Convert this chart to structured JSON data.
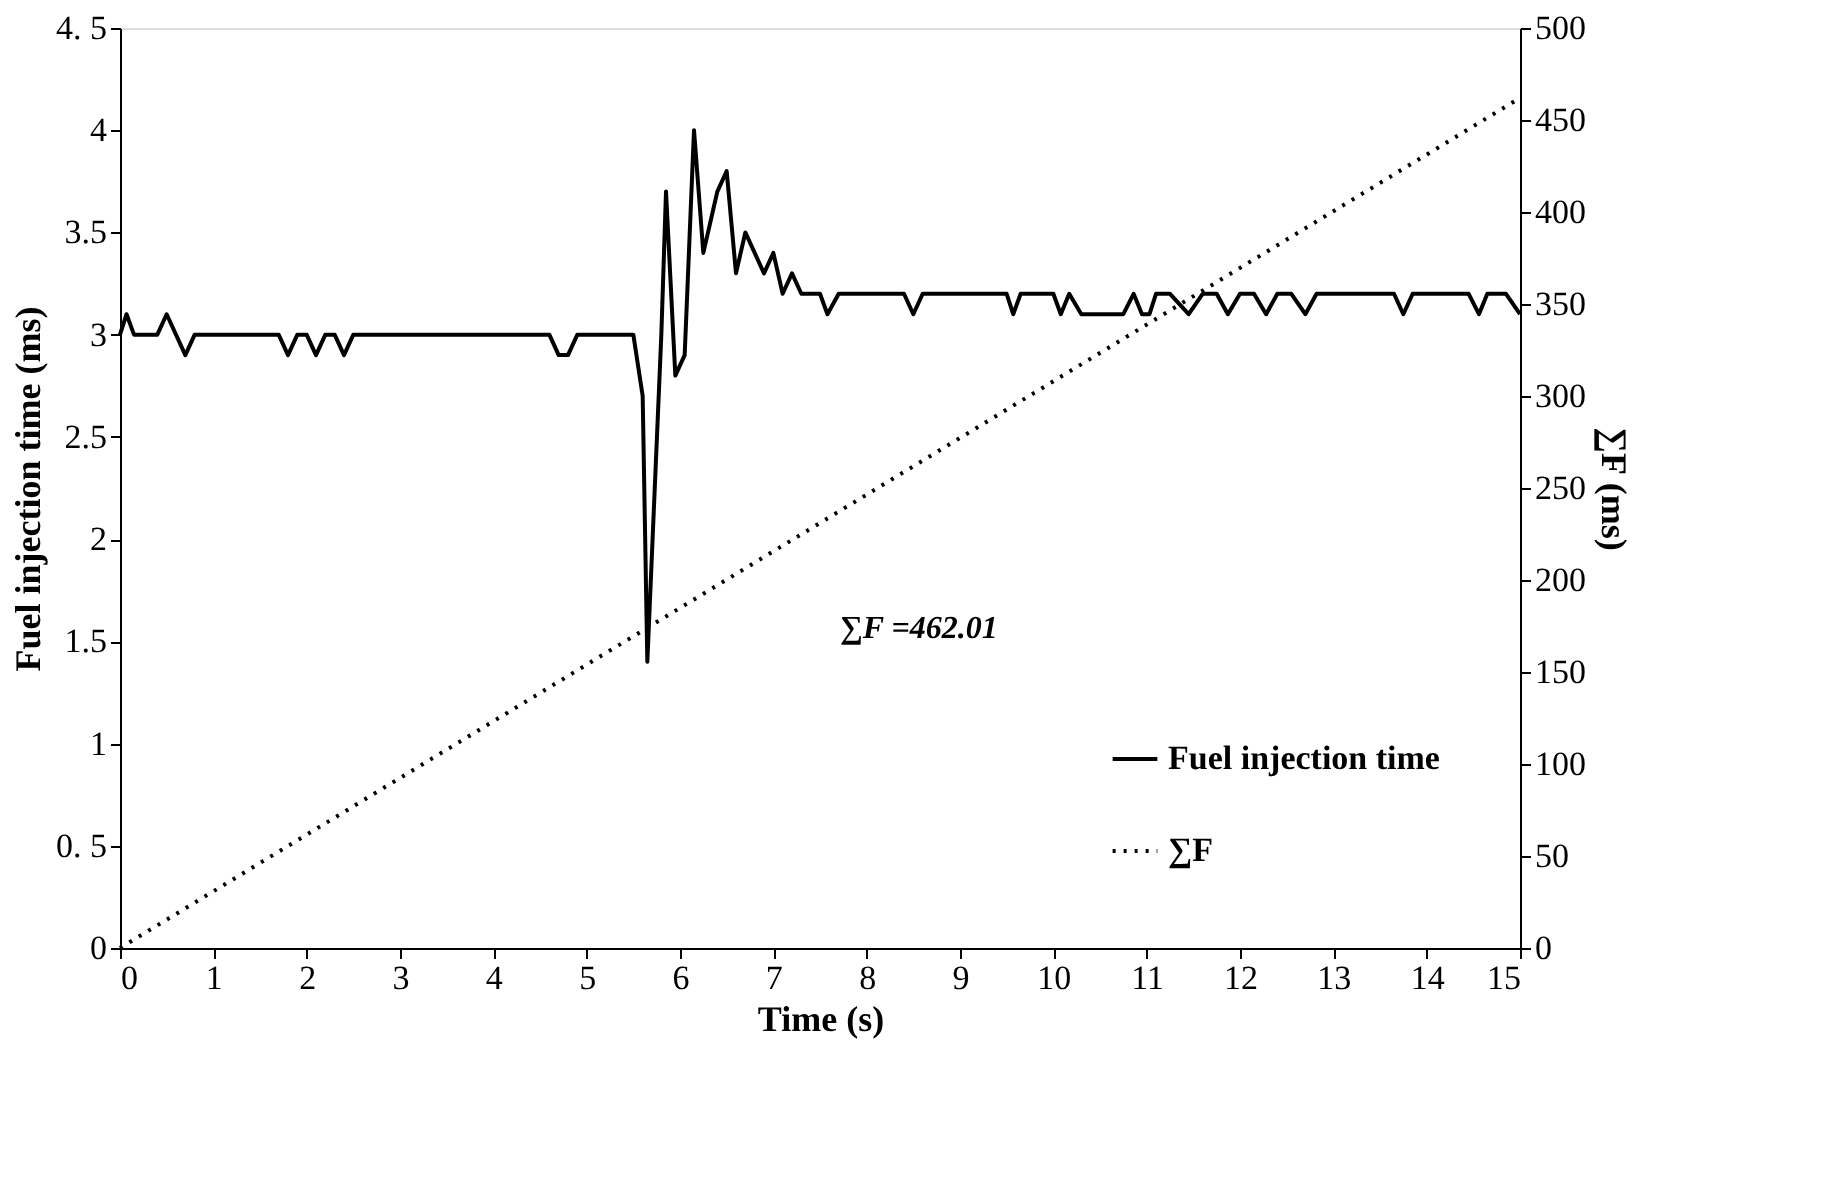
{
  "chart_data": {
    "type": "line",
    "xlabel": "Time (s)",
    "ylabel": "Fuel injection time (ms)",
    "y2label": "∑F (ms)",
    "xlim": [
      0,
      15
    ],
    "xticks": [
      0,
      1,
      2,
      3,
      4,
      5,
      6,
      7,
      8,
      9,
      10,
      11,
      12,
      13,
      14,
      15
    ],
    "ylim": [
      0,
      4.5
    ],
    "yticks": [
      0,
      {
        "value": 0.5,
        "label": "0. 5"
      },
      1,
      1.5,
      2,
      2.5,
      3,
      3.5,
      4,
      {
        "value": 4.5,
        "label": "4. 5"
      }
    ],
    "y2lim": [
      0,
      500
    ],
    "y2ticks": [
      0,
      50,
      100,
      150,
      200,
      250,
      300,
      350,
      400,
      450,
      500
    ],
    "legend": "bottom right",
    "grid": false,
    "marker": "none",
    "annotations": [
      "∑F =462.01"
    ],
    "series": [
      {
        "name": "Fuel injection time",
        "color": "#000000",
        "line_style": "solid",
        "x": [
          0,
          0.07,
          0.15,
          0.4,
          0.5,
          0.7,
          0.8,
          1.7,
          1.8,
          1.9,
          2.0,
          2.1,
          2.2,
          2.3,
          2.4,
          2.5,
          4.6,
          4.7,
          4.8,
          4.9,
          5.5,
          5.6,
          5.65,
          5.8,
          5.85,
          5.95,
          6.05,
          6.15,
          6.25,
          6.4,
          6.5,
          6.6,
          6.7,
          6.8,
          6.9,
          7.0,
          7.1,
          7.2,
          7.3,
          7.5,
          7.58,
          7.7,
          8.4,
          8.5,
          8.6,
          9.5,
          9.57,
          9.65,
          10.0,
          10.08,
          10.17,
          10.3,
          10.75,
          10.86,
          10.95,
          11.03,
          11.1,
          11.25,
          11.45,
          11.6,
          11.75,
          11.87,
          12.0,
          12.15,
          12.28,
          12.4,
          12.55,
          12.7,
          12.82,
          13.65,
          13.75,
          13.85,
          14.45,
          14.56,
          14.65,
          14.85,
          15
        ],
        "values": [
          3.0,
          3.1,
          3.0,
          3.0,
          3.1,
          2.9,
          3.0,
          3.0,
          2.9,
          3.0,
          3.0,
          2.9,
          3.0,
          3.0,
          2.9,
          3.0,
          3.0,
          2.9,
          2.9,
          3.0,
          3.0,
          2.7,
          1.4,
          3.0,
          3.7,
          2.8,
          2.9,
          4.0,
          3.4,
          3.7,
          3.8,
          3.3,
          3.5,
          3.4,
          3.3,
          3.4,
          3.2,
          3.3,
          3.2,
          3.2,
          3.1,
          3.2,
          3.2,
          3.1,
          3.2,
          3.2,
          3.1,
          3.2,
          3.2,
          3.1,
          3.2,
          3.1,
          3.1,
          3.2,
          3.1,
          3.1,
          3.2,
          3.2,
          3.1,
          3.2,
          3.2,
          3.1,
          3.2,
          3.2,
          3.1,
          3.2,
          3.2,
          3.1,
          3.2,
          3.2,
          3.1,
          3.2,
          3.2,
          3.1,
          3.2,
          3.2,
          3.1
        ]
      },
      {
        "name": "∑F",
        "color": "#000000",
        "line_style": "dotted",
        "axis": "y2",
        "x": [
          0,
          15
        ],
        "values": [
          0,
          462.01
        ]
      }
    ]
  }
}
